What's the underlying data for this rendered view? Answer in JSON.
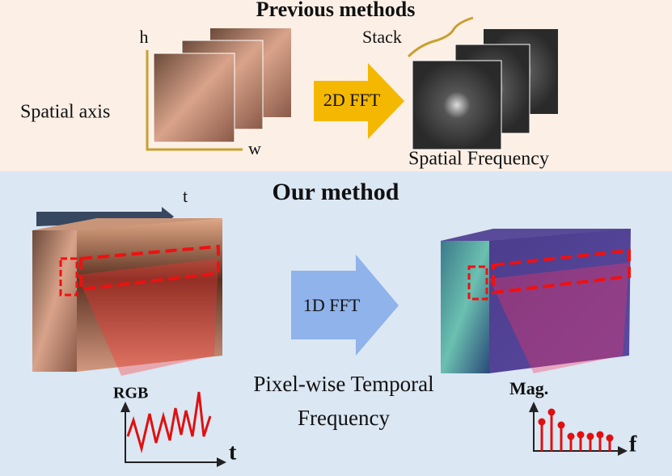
{
  "top": {
    "title": "Previous methods",
    "h_label": "h",
    "w_label": "w",
    "stack_label": "Stack",
    "spatial_axis_label": "Spatial axis",
    "arrow_label": "2D FFT",
    "output_label": "Spatial Frequency"
  },
  "bottom": {
    "title": "Our method",
    "time_label": "t",
    "arrow_label": "1D FFT",
    "output_label_lines": [
      "Pixel-wise Temporal",
      "Frequency"
    ],
    "rgb_plot": {
      "y_label": "RGB",
      "x_label": "t"
    },
    "mag_plot": {
      "y_label": "Mag.",
      "x_label": "f"
    }
  }
}
